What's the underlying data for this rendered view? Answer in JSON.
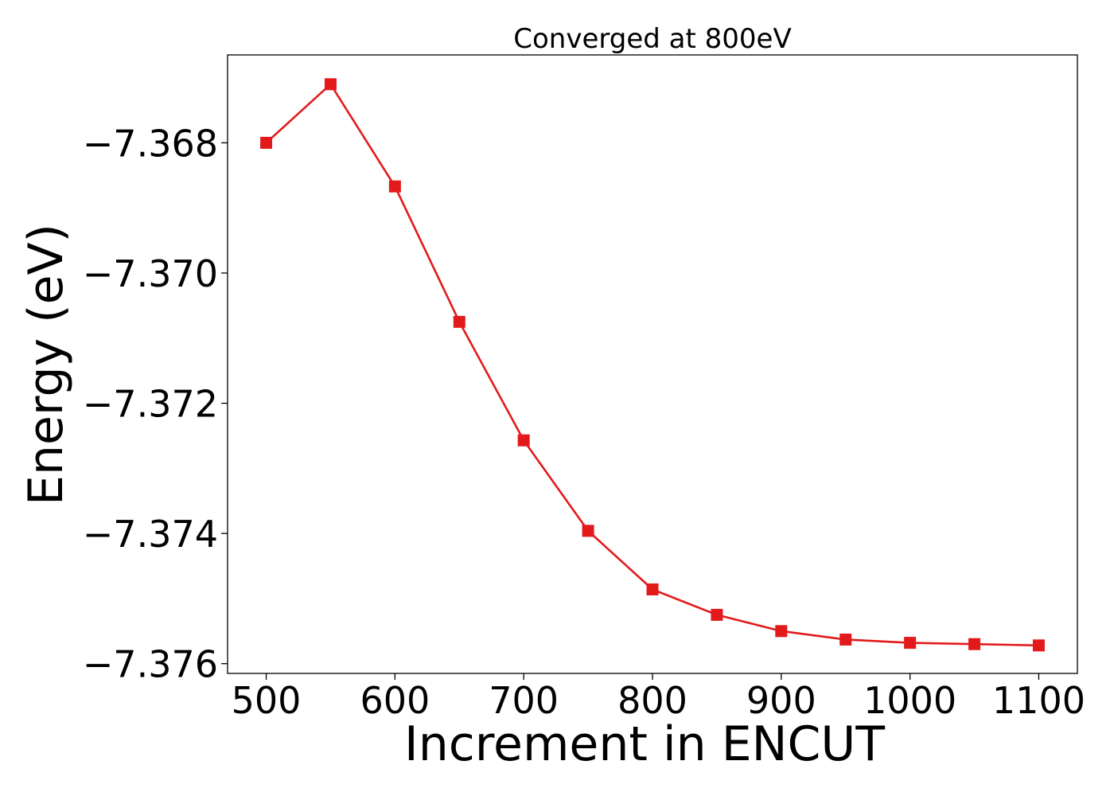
{
  "chart_data": {
    "type": "line",
    "title": "Converged at 800eV",
    "xlabel": "Increment in ENCUT",
    "ylabel": "Energy (eV)",
    "xlim": [
      470,
      1130
    ],
    "ylim": [
      -7.37615,
      -7.36665
    ],
    "xticks": [
      500,
      600,
      700,
      800,
      900,
      1000,
      1100
    ],
    "yticks": [
      -7.368,
      -7.37,
      -7.372,
      -7.374,
      -7.376
    ],
    "ytick_labels": [
      "−7.368",
      "−7.370",
      "−7.372",
      "−7.374",
      "−7.376"
    ],
    "grid": false,
    "legend": false,
    "series": [
      {
        "color": "#e31a1c",
        "marker": "square",
        "x": [
          500,
          550,
          600,
          650,
          700,
          750,
          800,
          850,
          900,
          950,
          1000,
          1050,
          1100
        ],
        "y": [
          -7.368,
          -7.3671,
          -7.36867,
          -7.37075,
          -7.37257,
          -7.37396,
          -7.37486,
          -7.37525,
          -7.3755,
          -7.37563,
          -7.37568,
          -7.3757,
          -7.37572
        ]
      }
    ]
  }
}
